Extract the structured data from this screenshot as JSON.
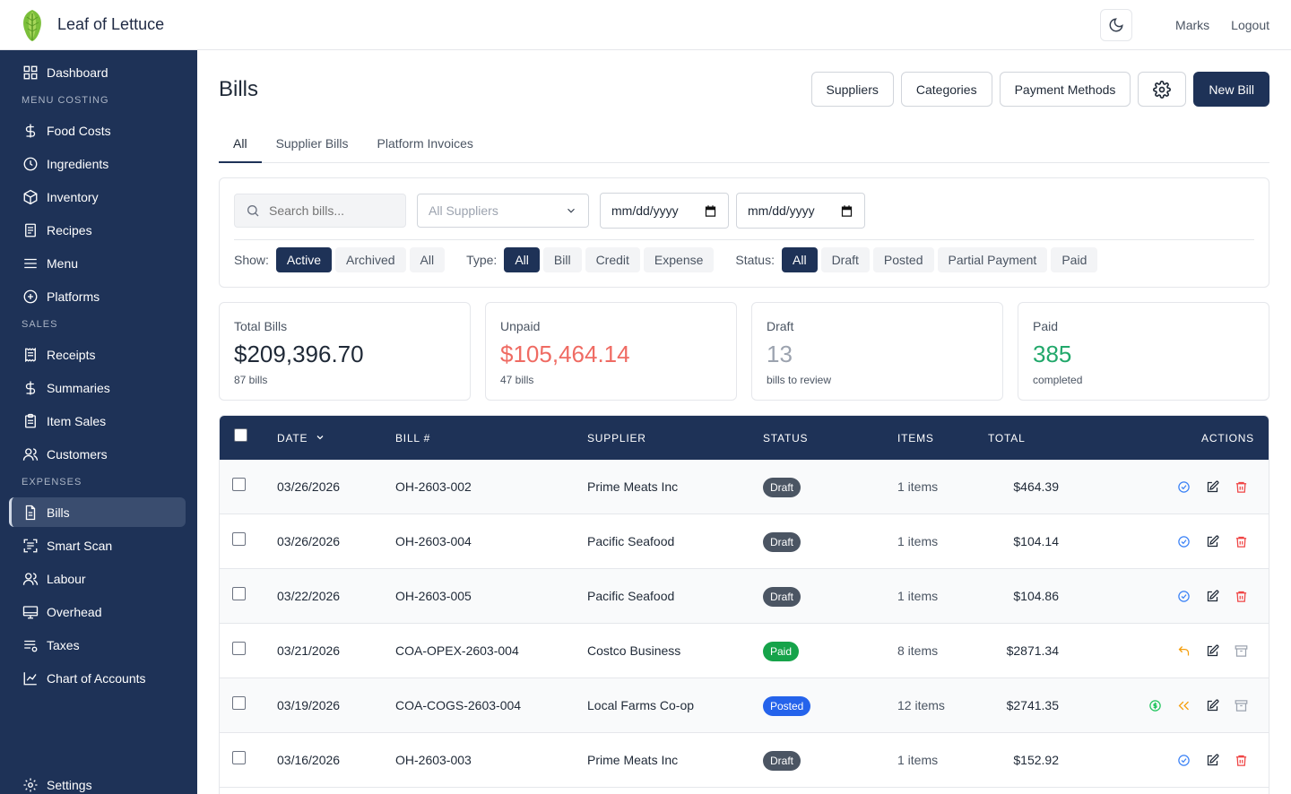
{
  "app": {
    "name": "Leaf of Lettuce"
  },
  "topbar": {
    "user": "Marks",
    "logout": "Logout"
  },
  "sidebar": {
    "items": [
      {
        "label": "Dashboard",
        "icon": "grid-icon"
      },
      {
        "label": "Food Costs",
        "icon": "dollar-icon"
      },
      {
        "label": "Ingredients",
        "icon": "clock-icon"
      },
      {
        "label": "Inventory",
        "icon": "box-icon"
      },
      {
        "label": "Recipes",
        "icon": "document-icon"
      },
      {
        "label": "Menu",
        "icon": "menu-icon"
      },
      {
        "label": "Platforms",
        "icon": "plus-circle-icon"
      },
      {
        "label": "Receipts",
        "icon": "receipt-icon"
      },
      {
        "label": "Summaries",
        "icon": "dollar-icon"
      },
      {
        "label": "Item Sales",
        "icon": "clipboard-icon"
      },
      {
        "label": "Customers",
        "icon": "users-icon"
      },
      {
        "label": "Bills",
        "icon": "file-icon"
      },
      {
        "label": "Smart Scan",
        "icon": "scan-icon"
      },
      {
        "label": "Labour",
        "icon": "users-icon"
      },
      {
        "label": "Overhead",
        "icon": "monitor-icon"
      },
      {
        "label": "Taxes",
        "icon": "list-icon"
      },
      {
        "label": "Chart of Accounts",
        "icon": "chart-icon"
      },
      {
        "label": "Settings",
        "icon": "gear-icon"
      }
    ],
    "sections": {
      "menu_costing": "MENU COSTING",
      "sales": "SALES",
      "expenses": "EXPENSES"
    }
  },
  "page": {
    "title": "Bills",
    "buttons": {
      "suppliers": "Suppliers",
      "categories": "Categories",
      "payment_methods": "Payment Methods",
      "new_bill": "New Bill"
    },
    "tabs": [
      "All",
      "Supplier Bills",
      "Platform Invoices"
    ]
  },
  "filters": {
    "search_placeholder": "Search bills...",
    "supplier_select": "All Suppliers",
    "date_from": "mm/dd/yyyy",
    "date_to": "mm/dd/yyyy",
    "show_label": "Show:",
    "show_options": [
      "Active",
      "Archived",
      "All"
    ],
    "type_label": "Type:",
    "type_options": [
      "All",
      "Bill",
      "Credit",
      "Expense"
    ],
    "status_label": "Status:",
    "status_options": [
      "All",
      "Draft",
      "Posted",
      "Partial Payment",
      "Paid"
    ]
  },
  "stats": [
    {
      "label": "Total Bills",
      "value": "$209,396.70",
      "sub": "87 bills",
      "color": "#1f2937"
    },
    {
      "label": "Unpaid",
      "value": "$105,464.14",
      "sub": "47 bills",
      "color": "#ef6b63"
    },
    {
      "label": "Draft",
      "value": "13",
      "sub": "bills to review",
      "color": "#9ca3af"
    },
    {
      "label": "Paid",
      "value": "385",
      "sub": "completed",
      "color": "#22a86b"
    }
  ],
  "table": {
    "headers": {
      "date": "DATE",
      "bill": "BILL #",
      "supplier": "SUPPLIER",
      "status": "STATUS",
      "items": "ITEMS",
      "total": "TOTAL",
      "actions": "ACTIONS"
    },
    "rows": [
      {
        "date": "03/26/2026",
        "bill": "OH-2603-002",
        "supplier": "Prime Meats Inc",
        "status": "Draft",
        "items": "1 items",
        "total": "$464.39"
      },
      {
        "date": "03/26/2026",
        "bill": "OH-2603-004",
        "supplier": "Pacific Seafood",
        "status": "Draft",
        "items": "1 items",
        "total": "$104.14"
      },
      {
        "date": "03/22/2026",
        "bill": "OH-2603-005",
        "supplier": "Pacific Seafood",
        "status": "Draft",
        "items": "1 items",
        "total": "$104.86"
      },
      {
        "date": "03/21/2026",
        "bill": "COA-OPEX-2603-004",
        "supplier": "Costco Business",
        "status": "Paid",
        "items": "8 items",
        "total": "$2871.34"
      },
      {
        "date": "03/19/2026",
        "bill": "COA-COGS-2603-004",
        "supplier": "Local Farms Co-op",
        "status": "Posted",
        "items": "12 items",
        "total": "$2741.35"
      },
      {
        "date": "03/16/2026",
        "bill": "OH-2603-003",
        "supplier": "Prime Meats Inc",
        "status": "Draft",
        "items": "1 items",
        "total": "$152.92"
      }
    ]
  },
  "colors": {
    "navy": "#1e3257",
    "draft": "#4b5563",
    "paid": "#16a34a",
    "posted": "#2563eb",
    "unpaid": "#ef6b63",
    "paid_stat": "#22a86b"
  }
}
